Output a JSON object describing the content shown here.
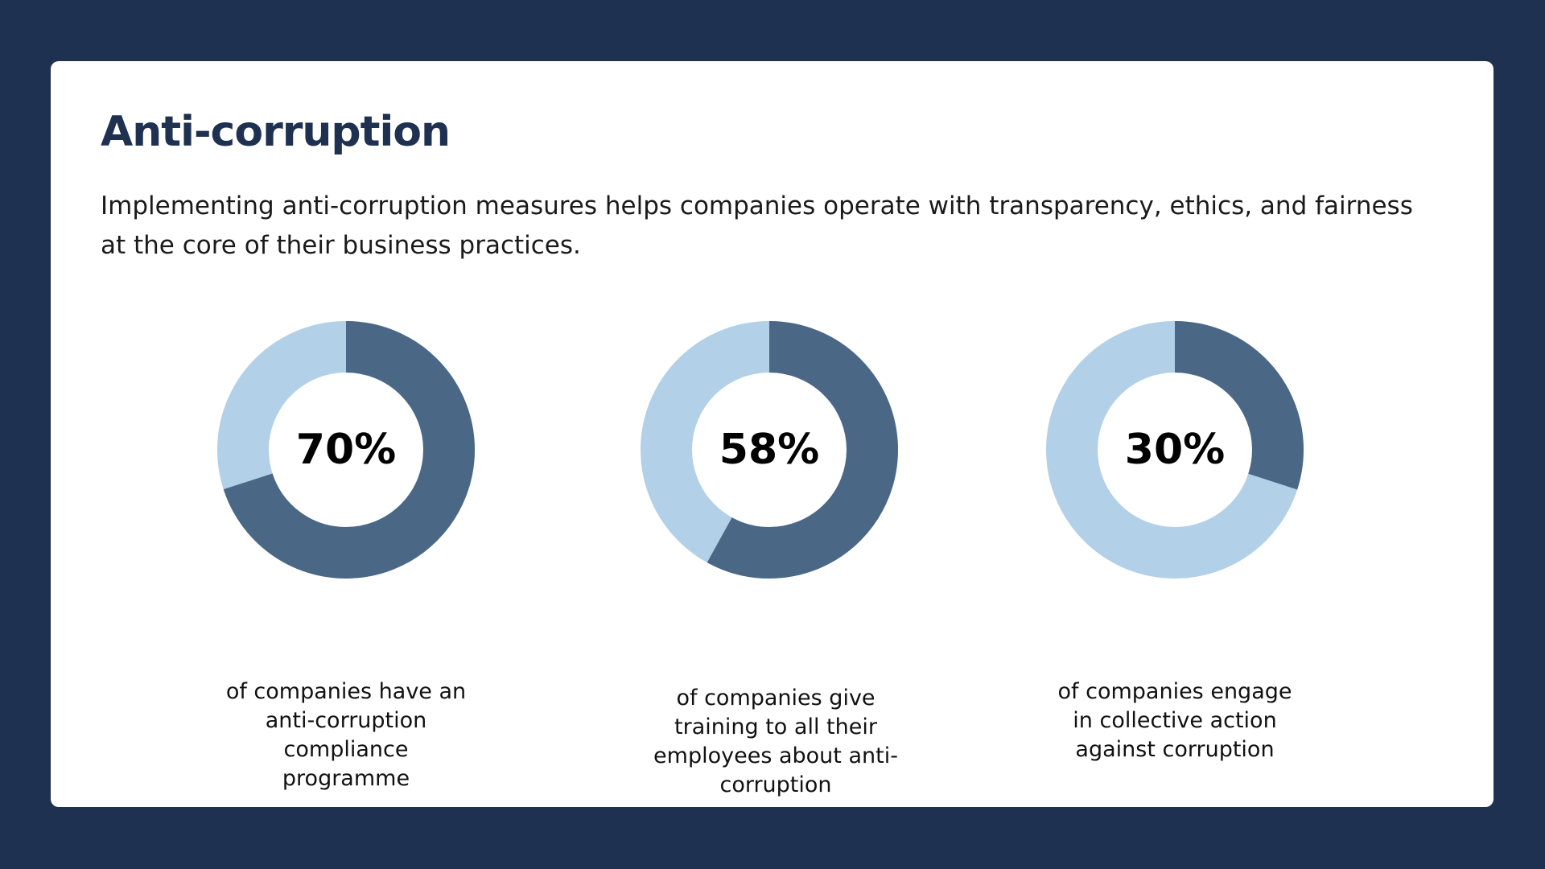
{
  "page": {
    "title": "Anti-corruption",
    "intro": "Implementing anti-corruption measures helps companies operate with transparency, ethics, and fairness at the core of their business practices."
  },
  "colors": {
    "background": "#1f3150",
    "filled": "#4a6886",
    "remainder": "#b2d0e7"
  },
  "chart_data": [
    {
      "type": "pie",
      "value": 70,
      "label": "70%",
      "caption": "of companies have an anti-corruption compliance programme"
    },
    {
      "type": "pie",
      "value": 58,
      "label": "58%",
      "caption": "of companies give training to all their employees about anti-corruption"
    },
    {
      "type": "pie",
      "value": 30,
      "label": "30%",
      "caption": "of companies engage in collective action against corruption"
    }
  ]
}
